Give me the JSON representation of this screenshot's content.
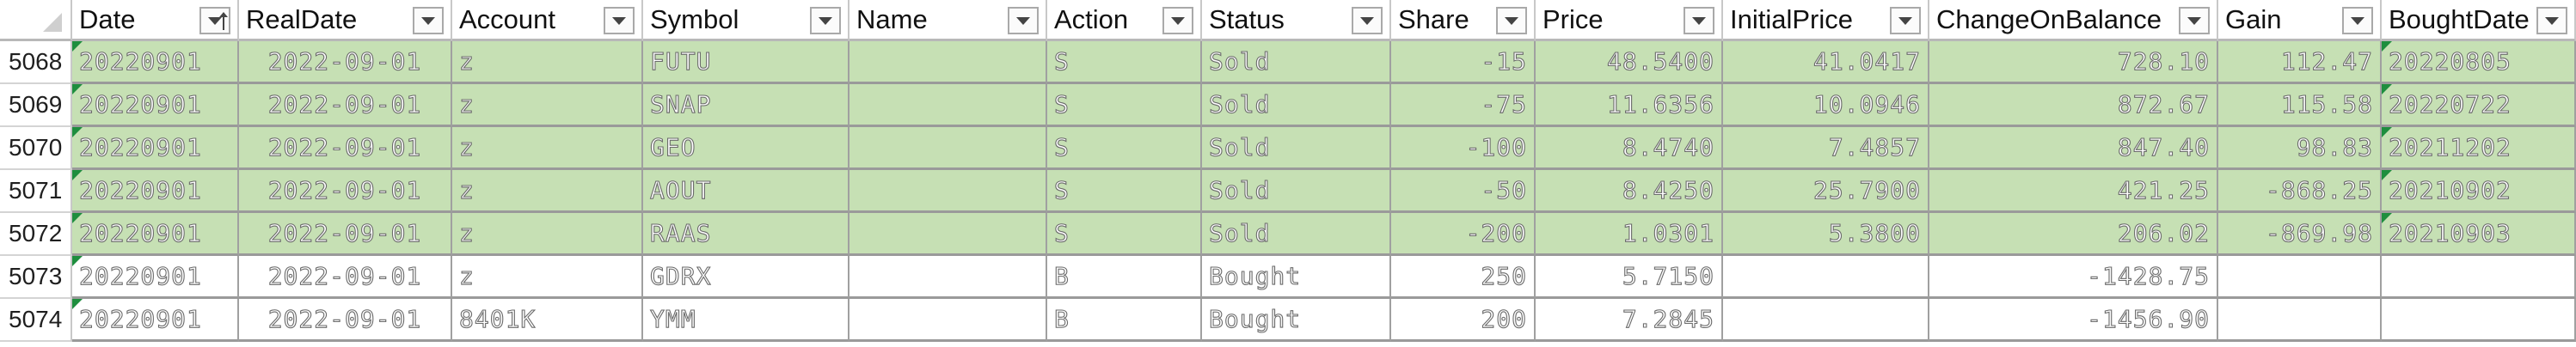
{
  "columns": [
    {
      "key": "Date",
      "label": "Date",
      "sorted": true
    },
    {
      "key": "RealDate",
      "label": "RealDate"
    },
    {
      "key": "Account",
      "label": "Account"
    },
    {
      "key": "Symbol",
      "label": "Symbol"
    },
    {
      "key": "Name",
      "label": "Name"
    },
    {
      "key": "Action",
      "label": "Action"
    },
    {
      "key": "Status",
      "label": "Status"
    },
    {
      "key": "Share",
      "label": "Share"
    },
    {
      "key": "Price",
      "label": "Price"
    },
    {
      "key": "InitialPrice",
      "label": "InitialPrice"
    },
    {
      "key": "ChangeOnBalance",
      "label": "ChangeOnBalance"
    },
    {
      "key": "Gain",
      "label": "Gain"
    },
    {
      "key": "BoughtDate",
      "label": "BoughtDate"
    }
  ],
  "rows": [
    {
      "rownum": "5068",
      "fill": "green",
      "Date": "20220901",
      "RealDate": "2022-09-01",
      "Account": "z",
      "Symbol": "FUTU",
      "Name": "",
      "Action": "S",
      "Status": "Sold",
      "Share": "-15",
      "Price": "48.5400",
      "InitialPrice": "41.0417",
      "ChangeOnBalance": "728.10",
      "Gain": "112.47",
      "BoughtDate": "20220805"
    },
    {
      "rownum": "5069",
      "fill": "green",
      "Date": "20220901",
      "RealDate": "2022-09-01",
      "Account": "z",
      "Symbol": "SNAP",
      "Name": "",
      "Action": "S",
      "Status": "Sold",
      "Share": "-75",
      "Price": "11.6356",
      "InitialPrice": "10.0946",
      "ChangeOnBalance": "872.67",
      "Gain": "115.58",
      "BoughtDate": "20220722"
    },
    {
      "rownum": "5070",
      "fill": "green",
      "Date": "20220901",
      "RealDate": "2022-09-01",
      "Account": "z",
      "Symbol": "GEO",
      "Name": "",
      "Action": "S",
      "Status": "Sold",
      "Share": "-100",
      "Price": "8.4740",
      "InitialPrice": "7.4857",
      "ChangeOnBalance": "847.40",
      "Gain": "98.83",
      "BoughtDate": "20211202"
    },
    {
      "rownum": "5071",
      "fill": "green",
      "Date": "20220901",
      "RealDate": "2022-09-01",
      "Account": "z",
      "Symbol": "AOUT",
      "Name": "",
      "Action": "S",
      "Status": "Sold",
      "Share": "-50",
      "Price": "8.4250",
      "InitialPrice": "25.7900",
      "ChangeOnBalance": "421.25",
      "Gain": "-868.25",
      "BoughtDate": "20210902"
    },
    {
      "rownum": "5072",
      "fill": "green",
      "Date": "20220901",
      "RealDate": "2022-09-01",
      "Account": "z",
      "Symbol": "RAAS",
      "Name": "",
      "Action": "S",
      "Status": "Sold",
      "Share": "-200",
      "Price": "1.0301",
      "InitialPrice": "5.3800",
      "ChangeOnBalance": "206.02",
      "Gain": "-869.98",
      "BoughtDate": "20210903"
    },
    {
      "rownum": "5073",
      "fill": "white",
      "Date": "20220901",
      "RealDate": "2022-09-01",
      "Account": "z",
      "Symbol": "GDRX",
      "Name": "",
      "Action": "B",
      "Status": "Bought",
      "Share": "250",
      "Price": "5.7150",
      "InitialPrice": "",
      "ChangeOnBalance": "-1428.75",
      "Gain": "",
      "BoughtDate": ""
    },
    {
      "rownum": "5074",
      "fill": "white",
      "Date": "20220901",
      "RealDate": "2022-09-01",
      "Account": "8401K",
      "Symbol": "YMM",
      "Name": "",
      "Action": "B",
      "Status": "Bought",
      "Share": "200",
      "Price": "7.2845",
      "InitialPrice": "",
      "ChangeOnBalance": "-1456.90",
      "Gain": "",
      "BoughtDate": ""
    }
  ]
}
